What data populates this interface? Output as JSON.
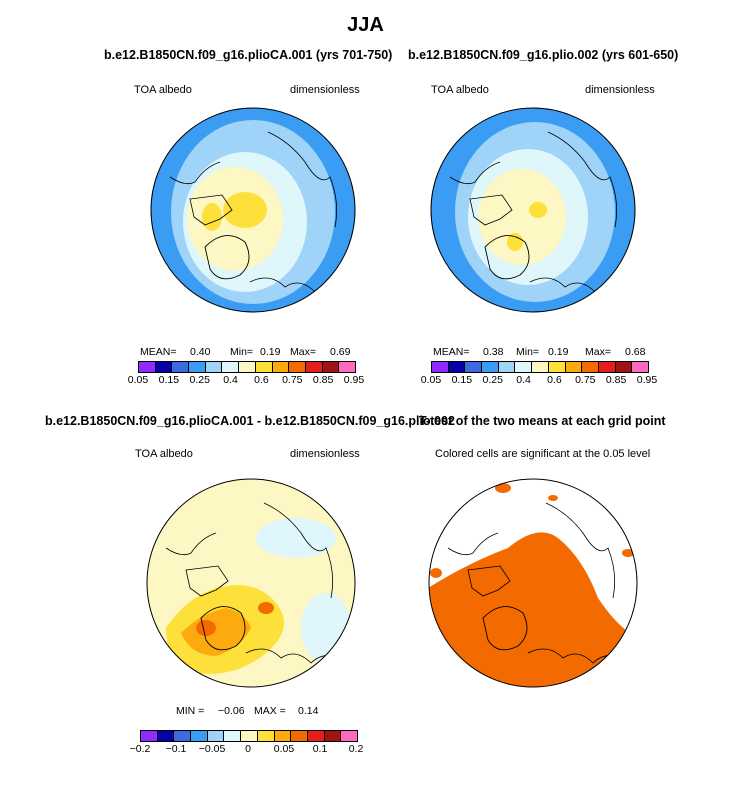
{
  "main_title": "JJA",
  "panels": {
    "p1": {
      "title": "b.e12.B1850CN.f09_g16.plioCA.001 (yrs 701-750)",
      "var": "TOA albedo",
      "units": "dimensionless",
      "mean_label": "MEAN=",
      "mean_value": "0.40",
      "min_label": "Min=",
      "min_value": "0.19",
      "max_label": "Max=",
      "max_value": "0.69"
    },
    "p2": {
      "title": "b.e12.B1850CN.f09_g16.plio.002 (yrs 601-650)",
      "var": "TOA albedo",
      "units": "dimensionless",
      "mean_label": "MEAN=",
      "mean_value": "0.38",
      "min_label": "Min=",
      "min_value": "0.19",
      "max_label": "Max=",
      "max_value": "0.68"
    },
    "p3": {
      "title": "b.e12.B1850CN.f09_g16.plioCA.001 - b.e12.B1850CN.f09_g16.plio.002",
      "var": "TOA albedo",
      "units": "dimensionless",
      "min_label": "MIN =",
      "min_value": "−0.06",
      "max_label": "MAX =",
      "max_value": "0.14"
    },
    "p4": {
      "title": "T-test of the two means at each grid point",
      "subtitle": "Colored cells are significant at the 0.05 level"
    }
  },
  "colorbar_main": {
    "colors": [
      "#8f2bff",
      "#0a00a8",
      "#3c6be0",
      "#3a9cf2",
      "#9fd3f7",
      "#dff6fa",
      "#fdf7c3",
      "#fde03a",
      "#fdaa0e",
      "#f36a00",
      "#e51d1d",
      "#a21414",
      "#ff68c0"
    ],
    "labels": [
      "0.05",
      "0.15",
      "0.25",
      "0.4",
      "0.6",
      "0.75",
      "0.85",
      "0.95"
    ]
  },
  "colorbar_diff": {
    "colors": [
      "#8f2bff",
      "#0a00a8",
      "#3c6be0",
      "#3a9cf2",
      "#9fd3f7",
      "#dff6fa",
      "#fdf7c3",
      "#fde03a",
      "#fdaa0e",
      "#f36a00",
      "#e51d1d",
      "#a21414",
      "#ff68c0"
    ],
    "labels": [
      "−0.2",
      "−0.1",
      "−0.05",
      "0",
      "0.05",
      "0.1",
      "0.2"
    ]
  },
  "map_colors": {
    "ocean_blue": "#3a9cf2",
    "ocean_mid": "#9fd3f7",
    "ocean_light": "#dff6fa",
    "ice_pale": "#fdf7c3",
    "ice_yellow": "#fde03a",
    "diff_orange": "#fdaa0e",
    "diff_dark": "#f36a00",
    "sig_orange": "#f36a00"
  }
}
